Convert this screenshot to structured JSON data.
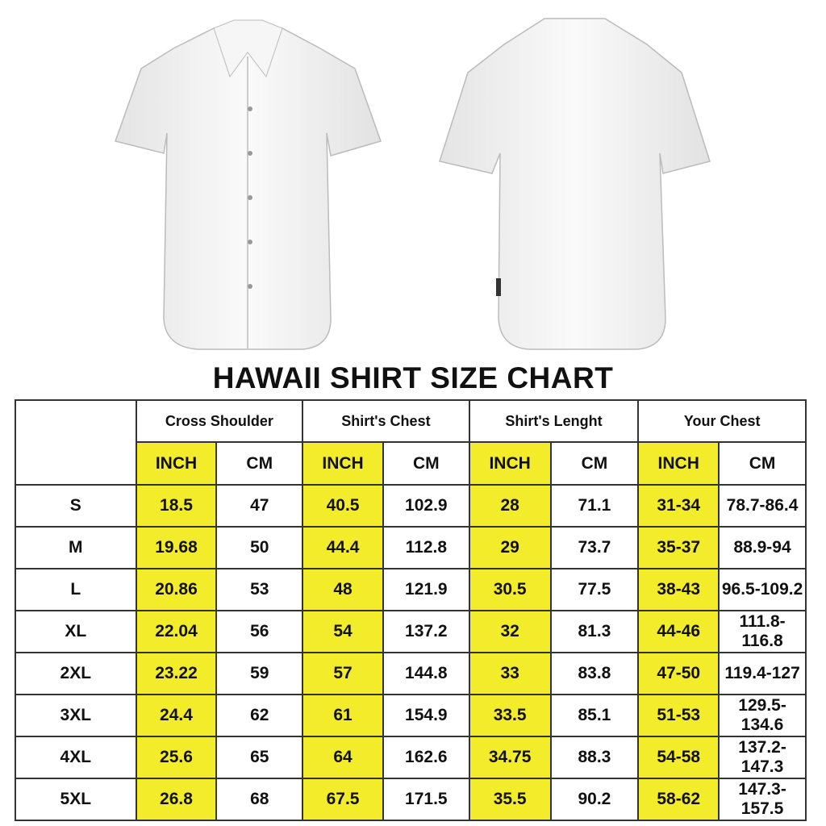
{
  "title": "HAWAII SHIRT SIZE CHART",
  "colors": {
    "highlight": "#f2ec2a",
    "border": "#333333",
    "shirt": "#f4f4f4"
  },
  "images": [
    "shirt-front",
    "shirt-back"
  ],
  "table": {
    "groups": [
      "Cross Shoulder",
      "Shirt's Chest",
      "Shirt's Lenght",
      "Your Chest"
    ],
    "units": [
      "INCH",
      "CM"
    ],
    "rows": [
      {
        "size": "S",
        "values": [
          "18.5",
          "47",
          "40.5",
          "102.9",
          "28",
          "71.1",
          "31-34",
          "78.7-86.4"
        ]
      },
      {
        "size": "M",
        "values": [
          "19.68",
          "50",
          "44.4",
          "112.8",
          "29",
          "73.7",
          "35-37",
          "88.9-94"
        ]
      },
      {
        "size": "L",
        "values": [
          "20.86",
          "53",
          "48",
          "121.9",
          "30.5",
          "77.5",
          "38-43",
          "96.5-109.2"
        ]
      },
      {
        "size": "XL",
        "values": [
          "22.04",
          "56",
          "54",
          "137.2",
          "32",
          "81.3",
          "44-46",
          "111.8-116.8"
        ]
      },
      {
        "size": "2XL",
        "values": [
          "23.22",
          "59",
          "57",
          "144.8",
          "33",
          "83.8",
          "47-50",
          "119.4-127"
        ]
      },
      {
        "size": "3XL",
        "values": [
          "24.4",
          "62",
          "61",
          "154.9",
          "33.5",
          "85.1",
          "51-53",
          "129.5-134.6"
        ]
      },
      {
        "size": "4XL",
        "values": [
          "25.6",
          "65",
          "64",
          "162.6",
          "34.75",
          "88.3",
          "54-58",
          "137.2-147.3"
        ]
      },
      {
        "size": "5XL",
        "values": [
          "26.8",
          "68",
          "67.5",
          "171.5",
          "35.5",
          "90.2",
          "58-62",
          "147.3-157.5"
        ]
      }
    ]
  }
}
